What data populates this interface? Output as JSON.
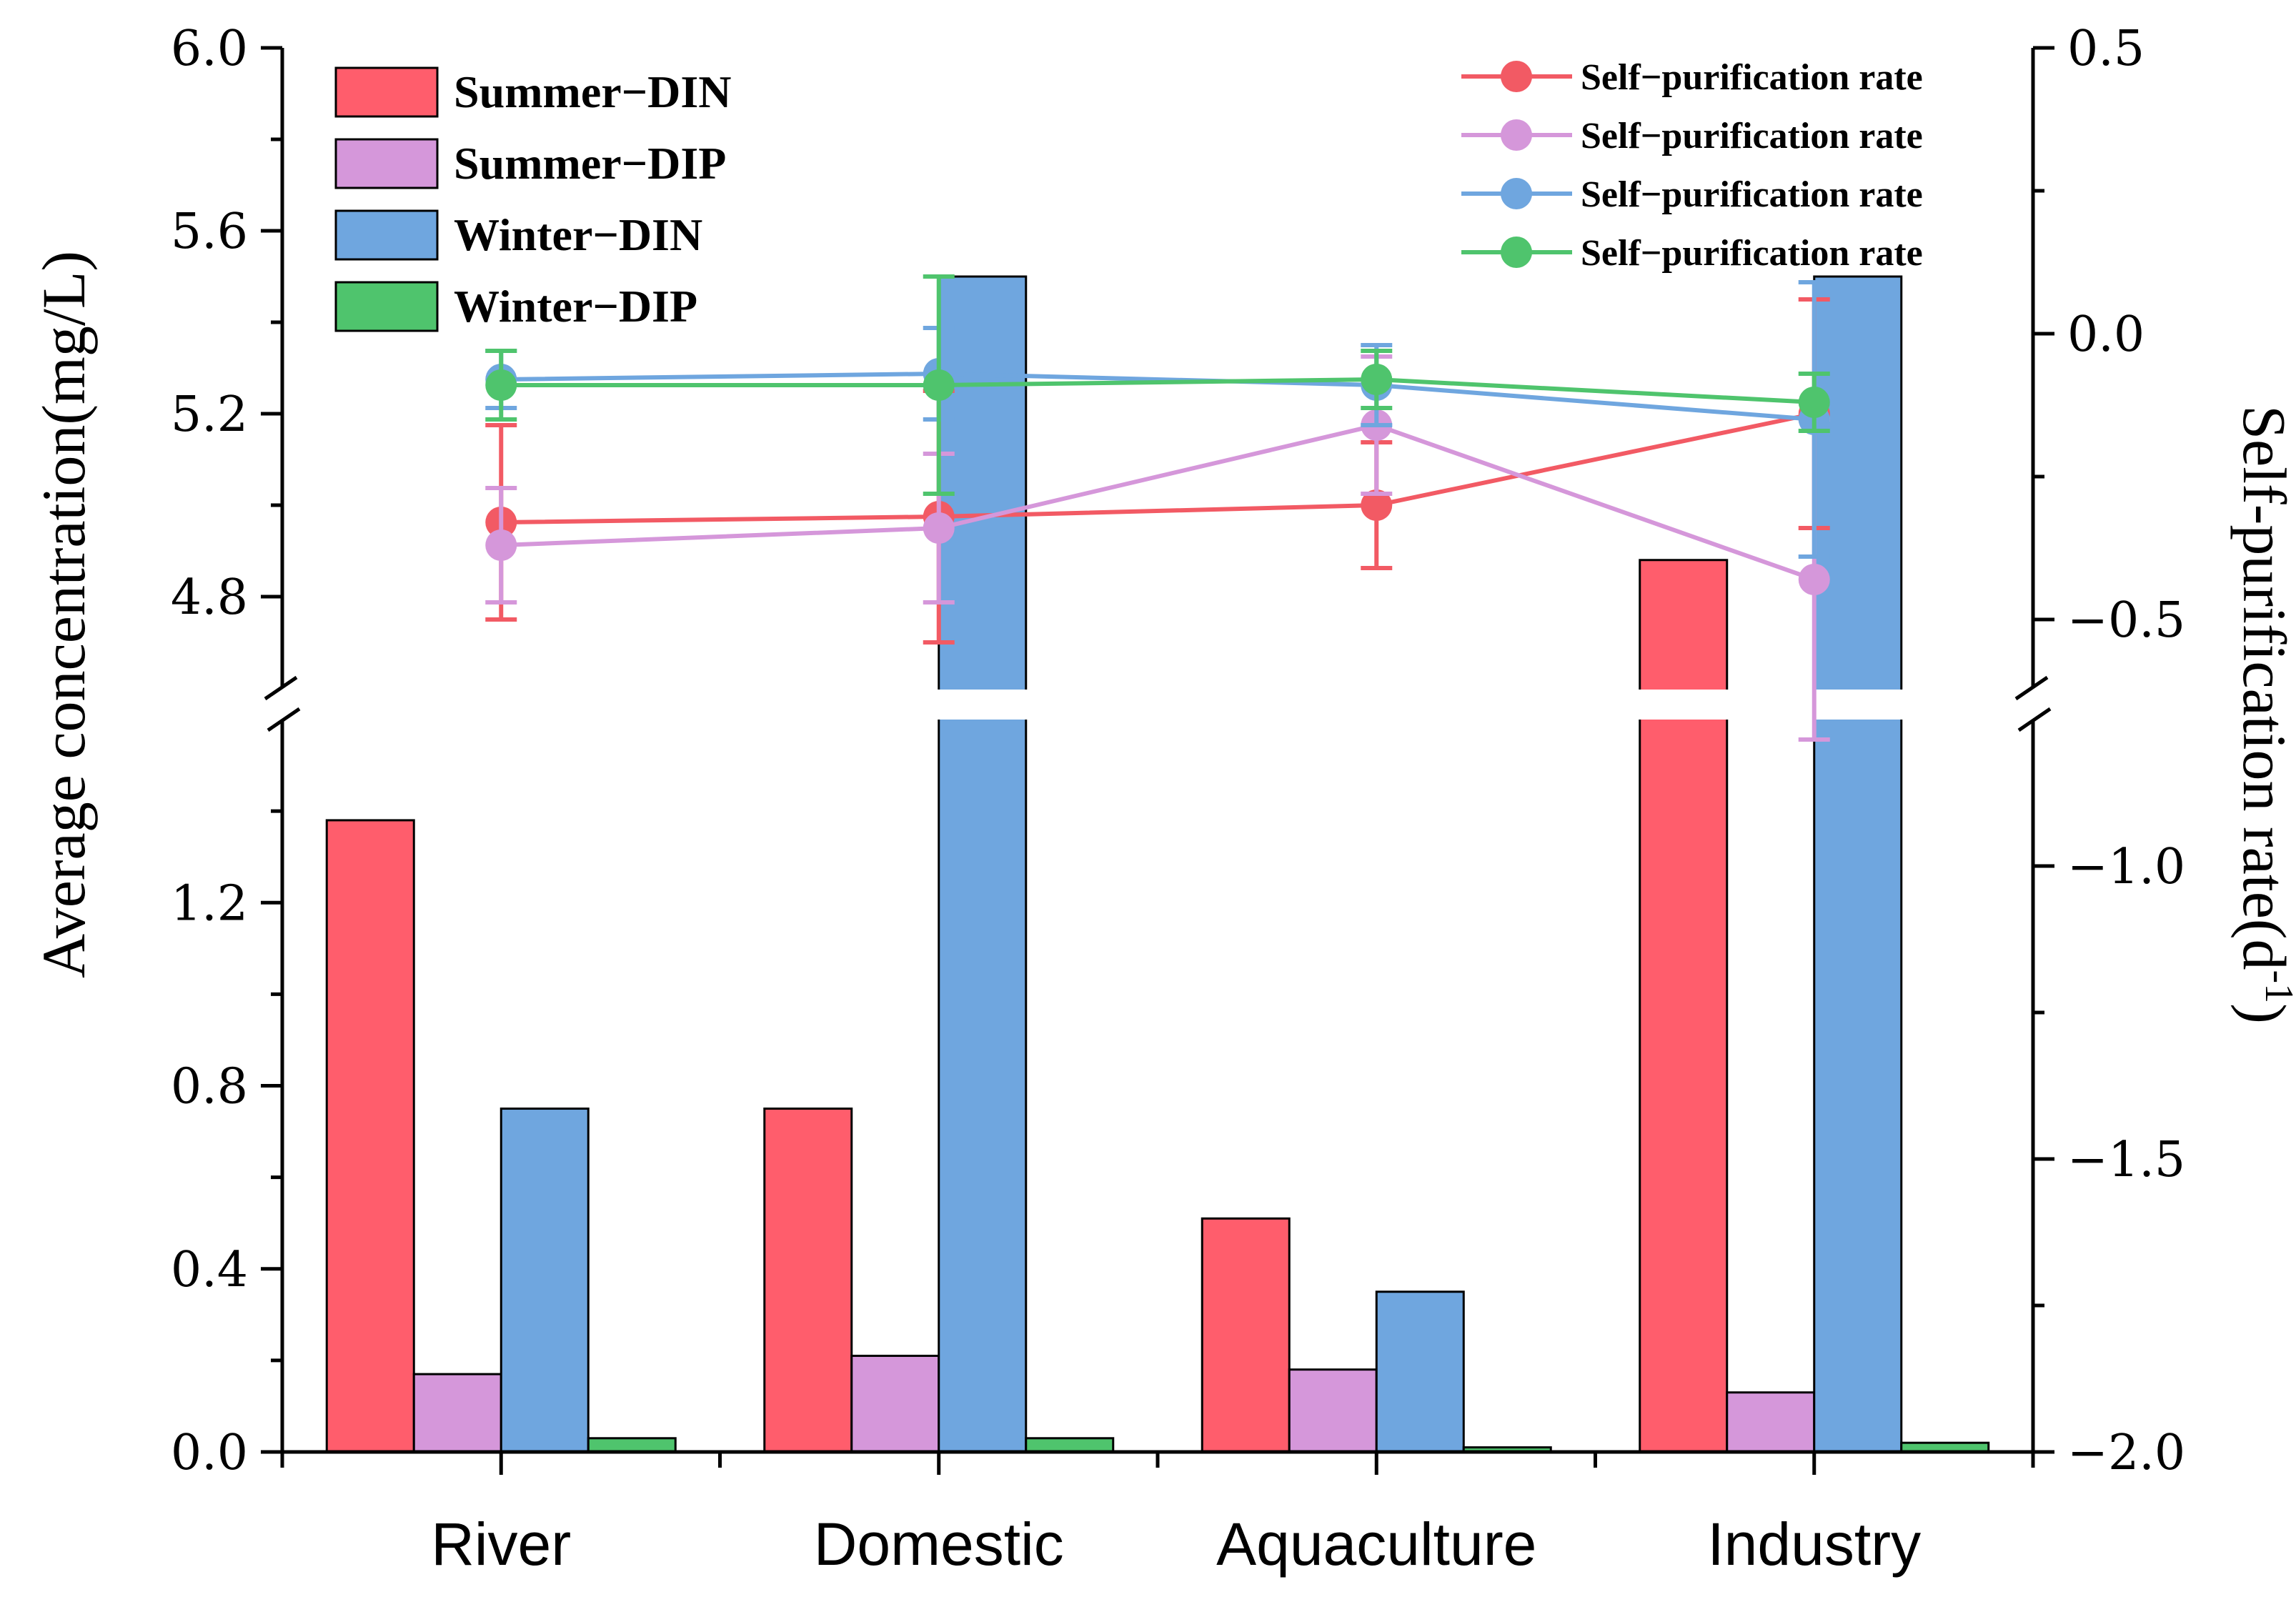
{
  "chart_data": {
    "type": "bar",
    "categories": [
      "River",
      "Domestic",
      "Aquaculture",
      "Industry"
    ],
    "left_axis": {
      "label": "Average concentration(mg/L)",
      "broken": true,
      "lower_segment": {
        "ylim": [
          0.0,
          1.6
        ],
        "ticks": [
          "0.0",
          "0.4",
          "0.8",
          "1.2"
        ],
        "tick_values": [
          0.0,
          0.4,
          0.8,
          1.2
        ]
      },
      "upper_segment": {
        "ylim": [
          4.6,
          6.0
        ],
        "ticks": [
          "4.8",
          "5.2",
          "5.6",
          "6.0"
        ],
        "tick_values": [
          4.8,
          5.2,
          5.6,
          6.0
        ]
      }
    },
    "right_axis": {
      "label": "Self-purification rate(d",
      "label_superscript": "-1",
      "label_close": ")",
      "broken": true,
      "lower_segment": {
        "ylim": [
          -2.0,
          -0.75
        ],
        "ticks": [
          "−2.0",
          "−1.5",
          "−1.0"
        ],
        "tick_values": [
          -2.0,
          -1.5,
          -1.0
        ]
      },
      "upper_segment": {
        "ylim": [
          -0.62,
          0.5
        ],
        "ticks": [
          "−0.5",
          "0.0",
          "0.5"
        ],
        "tick_values": [
          -0.5,
          0.0,
          0.5
        ]
      }
    },
    "bar_series": [
      {
        "name": "Summer−DIN",
        "color": "#ff5d6c",
        "values": [
          1.38,
          0.75,
          0.51,
          4.88
        ]
      },
      {
        "name": "Summer−DIP",
        "color": "#d597da",
        "values": [
          0.17,
          0.21,
          0.18,
          0.13
        ]
      },
      {
        "name": "Winter−DIN",
        "color": "#6fa6df",
        "values": [
          0.75,
          5.5,
          0.35,
          5.5
        ]
      },
      {
        "name": "Winter−DIP",
        "color": "#4fc46d",
        "values": [
          0.03,
          0.03,
          0.01,
          0.02
        ]
      }
    ],
    "line_series": [
      {
        "name": "Self−purification rate",
        "color": "#f25a64",
        "values": [
          -0.33,
          -0.32,
          -0.3,
          -0.14
        ],
        "errors": [
          0.17,
          0.22,
          0.11,
          0.2
        ]
      },
      {
        "name": "Self−purification rate",
        "color": "#d597da",
        "values": [
          -0.37,
          -0.34,
          -0.16,
          -0.43
        ],
        "errors": [
          0.1,
          0.13,
          0.12,
          0.28
        ]
      },
      {
        "name": "Self−purification rate",
        "color": "#6fa6df",
        "values": [
          -0.08,
          -0.07,
          -0.09,
          -0.15
        ],
        "errors": [
          0.05,
          0.08,
          0.07,
          0.24
        ]
      },
      {
        "name": "Self−purification rate",
        "color": "#4fc46d",
        "values": [
          -0.09,
          -0.09,
          -0.08,
          -0.12
        ],
        "errors": [
          0.06,
          0.19,
          0.05,
          0.05
        ]
      }
    ],
    "legend_position": "top"
  }
}
